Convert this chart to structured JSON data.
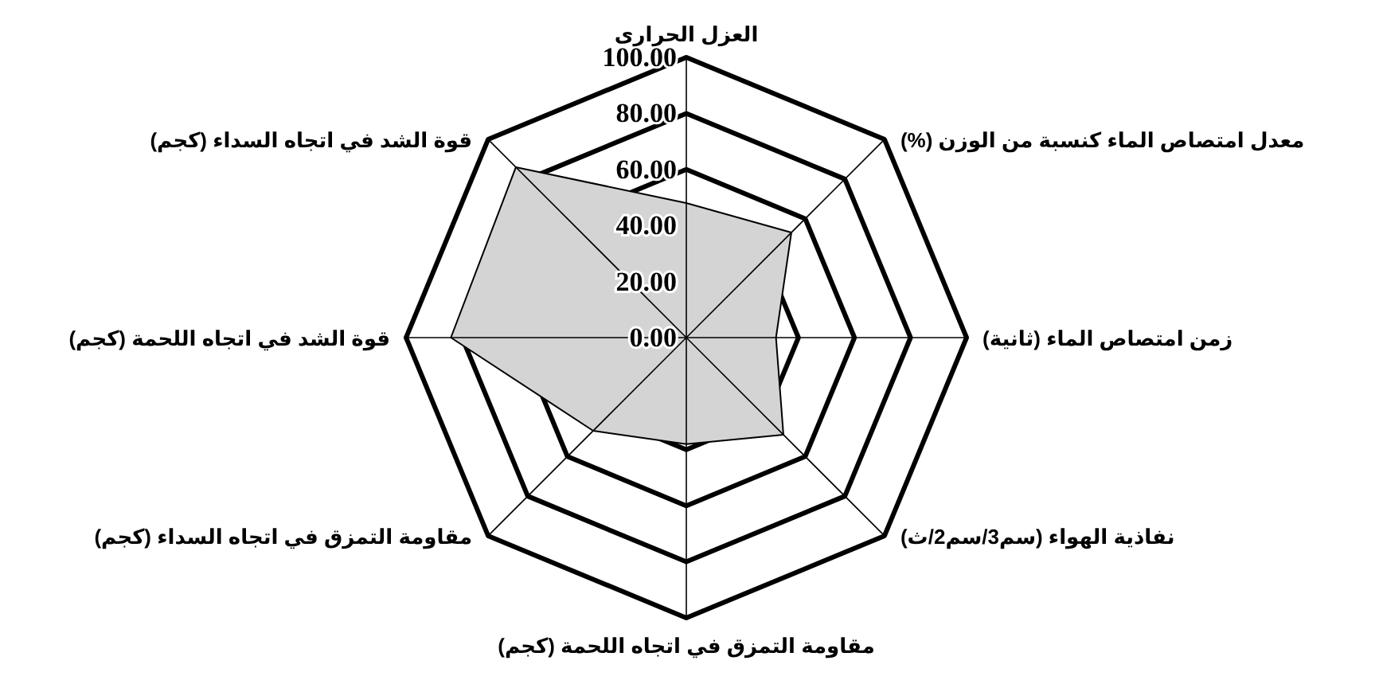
{
  "chart_data": {
    "type": "radar",
    "categories": [
      "العزل الحرارى",
      "معدل امتصاص الماء كنسبة من الوزن (%)",
      "زمن امتصاص الماء (ثانية)",
      "نفاذية الهواء (سم3/سم2/ث)",
      "مقاومة التمزق في اتجاه اللحمة (كجم)",
      "مقاومة التمزق في اتجاه السداء (كجم)",
      "قوة الشد في اتجاه اللحمة (كجم)",
      "قوة الشد في اتجاه السداء (كجم)"
    ],
    "series": [
      {
        "color": "#d4d4d4",
        "values": [
          48,
          53,
          32,
          49,
          38,
          47,
          84,
          86
        ]
      }
    ],
    "ylim": [
      0,
      100
    ],
    "yticks": [
      {
        "value": 0,
        "label": "0.00"
      },
      {
        "value": 20,
        "label": "20.00"
      },
      {
        "value": 40,
        "label": "40.00"
      },
      {
        "value": 60,
        "label": "60.00"
      },
      {
        "value": 80,
        "label": "80.00"
      },
      {
        "value": 100,
        "label": "100.00"
      }
    ],
    "grid": true
  }
}
